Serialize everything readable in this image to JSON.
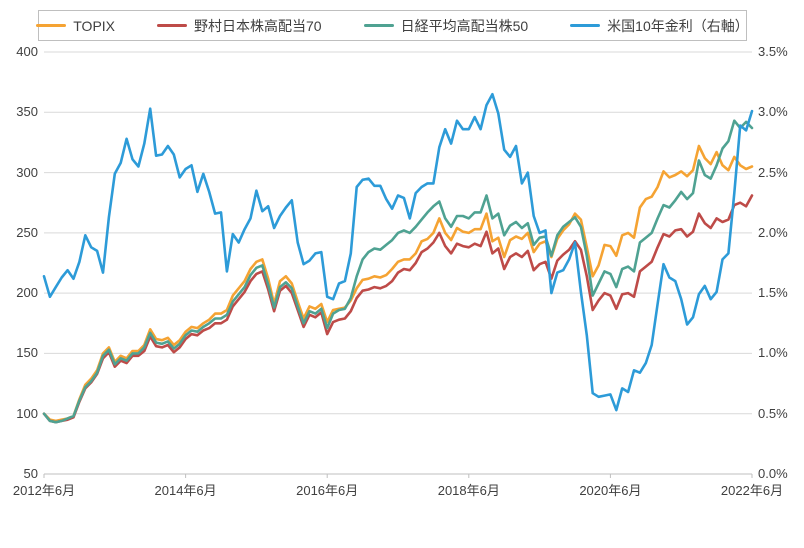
{
  "legend": {
    "items": [
      {
        "label": "TOPIX",
        "color": "#F5A333"
      },
      {
        "label": "野村日本株高配当70",
        "color": "#BE4B48"
      },
      {
        "label": "日経平均高配当株50",
        "color": "#4FA292"
      },
      {
        "label": "米国10年金利（右軸）",
        "color": "#2D9BD8"
      }
    ]
  },
  "chart_data": {
    "type": "line",
    "title": "",
    "x_description": "monthly, 2012-06 to 2022-06, stock indices rebased to 100 at 2012-06",
    "x_count": 121,
    "x_tick_positions": [
      0,
      24,
      48,
      72,
      96,
      120
    ],
    "x_tick_labels": [
      "2012年6月",
      "2014年6月",
      "2016年6月",
      "2018年6月",
      "2020年6月",
      "2022年6月"
    ],
    "left_axis": {
      "min": 50,
      "max": 400,
      "ticks": [
        400,
        350,
        300,
        250,
        200,
        150,
        100,
        50
      ]
    },
    "right_axis": {
      "min": 0,
      "max": 3.5,
      "ticks": [
        "3.5%",
        "3.0%",
        "2.5%",
        "2.0%",
        "1.5%",
        "1.0%",
        "0.5%",
        "0.0%"
      ]
    },
    "grid_color": "#d9d9d9",
    "axis_line_color": "#bfbfbf",
    "series": [
      {
        "name": "TOPIX",
        "axis": "left",
        "color": "#F5A333",
        "values": [
          100,
          95,
          94,
          95,
          96,
          98,
          112,
          124,
          129,
          136,
          150,
          155,
          143,
          148,
          146,
          152,
          152,
          157,
          170,
          162,
          161,
          163,
          157,
          161,
          168,
          172,
          171,
          175,
          178,
          183,
          183,
          186,
          198,
          204,
          210,
          220,
          226,
          228,
          212,
          191,
          210,
          214,
          208,
          193,
          179,
          189,
          187,
          191,
          176,
          186,
          187,
          188,
          194,
          204,
          211,
          212,
          214,
          213,
          215,
          220,
          226,
          228,
          228,
          233,
          243,
          245,
          250,
          262,
          250,
          244,
          254,
          251,
          250,
          253,
          253,
          266,
          243,
          246,
          230,
          244,
          247,
          245,
          250,
          234,
          241,
          243,
          230,
          245,
          252,
          257,
          266,
          261,
          238,
          214,
          223,
          240,
          239,
          231,
          248,
          250,
          246,
          271,
          278,
          280,
          288,
          301,
          296,
          298,
          301,
          297,
          302,
          322,
          312,
          307,
          317,
          306,
          302,
          313,
          306,
          303,
          305
        ]
      },
      {
        "name": "野村日本株高配当70",
        "axis": "left",
        "color": "#BE4B48",
        "values": [
          100,
          94,
          93,
          94,
          95,
          97,
          110,
          121,
          126,
          133,
          146,
          151,
          139,
          144,
          142,
          148,
          148,
          152,
          164,
          156,
          155,
          157,
          151,
          155,
          162,
          166,
          165,
          169,
          171,
          175,
          175,
          178,
          189,
          195,
          201,
          210,
          216,
          218,
          203,
          185,
          202,
          206,
          200,
          186,
          172,
          182,
          180,
          184,
          166,
          176,
          178,
          179,
          185,
          196,
          202,
          203,
          205,
          204,
          206,
          210,
          217,
          220,
          219,
          225,
          234,
          237,
          242,
          250,
          239,
          233,
          241,
          239,
          238,
          241,
          239,
          251,
          233,
          237,
          220,
          230,
          233,
          230,
          235,
          219,
          224,
          226,
          212,
          227,
          232,
          236,
          243,
          236,
          214,
          186,
          194,
          200,
          198,
          187,
          199,
          200,
          197,
          218,
          222,
          226,
          238,
          249,
          247,
          252,
          253,
          247,
          251,
          266,
          258,
          254,
          262,
          259,
          261,
          273,
          275,
          272,
          281
        ]
      },
      {
        "name": "日経平均高配当株50",
        "axis": "left",
        "color": "#4FA292",
        "values": [
          100,
          94,
          93,
          94,
          96,
          98,
          111,
          122,
          127,
          134,
          148,
          153,
          141,
          146,
          144,
          150,
          150,
          155,
          167,
          159,
          158,
          160,
          154,
          158,
          165,
          169,
          168,
          172,
          175,
          179,
          179,
          182,
          193,
          199,
          205,
          215,
          221,
          223,
          207,
          188,
          205,
          209,
          204,
          189,
          175,
          185,
          183,
          187,
          171,
          183,
          186,
          187,
          196,
          214,
          228,
          234,
          237,
          236,
          240,
          244,
          250,
          252,
          250,
          255,
          261,
          267,
          272,
          276,
          262,
          255,
          264,
          264,
          262,
          267,
          267,
          281,
          262,
          266,
          248,
          256,
          259,
          254,
          258,
          240,
          246,
          247,
          231,
          248,
          255,
          259,
          263,
          255,
          231,
          198,
          208,
          218,
          216,
          205,
          220,
          222,
          218,
          242,
          246,
          250,
          262,
          273,
          271,
          277,
          284,
          278,
          283,
          310,
          298,
          295,
          306,
          320,
          326,
          343,
          337,
          342,
          337
        ]
      },
      {
        "name": "米国10年金利（右軸）",
        "axis": "right",
        "color": "#2D9BD8",
        "values": [
          1.64,
          1.47,
          1.55,
          1.63,
          1.69,
          1.62,
          1.76,
          1.98,
          1.88,
          1.85,
          1.67,
          2.13,
          2.49,
          2.58,
          2.78,
          2.61,
          2.55,
          2.74,
          3.03,
          2.64,
          2.65,
          2.72,
          2.65,
          2.46,
          2.53,
          2.56,
          2.34,
          2.49,
          2.34,
          2.16,
          2.17,
          1.68,
          1.99,
          1.92,
          2.03,
          2.12,
          2.35,
          2.18,
          2.22,
          2.04,
          2.14,
          2.21,
          2.27,
          1.92,
          1.74,
          1.77,
          1.83,
          1.84,
          1.47,
          1.45,
          1.58,
          1.6,
          1.83,
          2.38,
          2.44,
          2.45,
          2.39,
          2.39,
          2.28,
          2.2,
          2.31,
          2.29,
          2.12,
          2.33,
          2.38,
          2.41,
          2.41,
          2.71,
          2.86,
          2.74,
          2.93,
          2.86,
          2.86,
          2.96,
          2.86,
          3.06,
          3.15,
          2.99,
          2.69,
          2.63,
          2.72,
          2.41,
          2.5,
          2.14,
          2.0,
          2.02,
          1.5,
          1.67,
          1.69,
          1.78,
          1.92,
          1.51,
          1.15,
          0.67,
          0.64,
          0.65,
          0.66,
          0.53,
          0.71,
          0.68,
          0.86,
          0.84,
          0.92,
          1.07,
          1.41,
          1.74,
          1.63,
          1.6,
          1.45,
          1.24,
          1.3,
          1.49,
          1.56,
          1.45,
          1.51,
          1.78,
          1.83,
          2.33,
          2.89,
          2.85,
          3.01
        ]
      }
    ]
  }
}
